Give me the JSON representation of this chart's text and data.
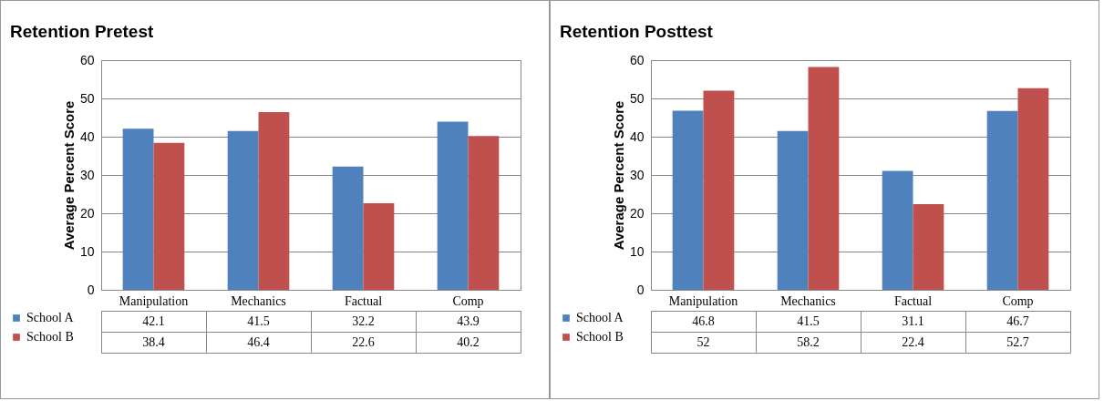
{
  "chart_data": [
    {
      "type": "bar",
      "title": "Retention Pretest",
      "ylabel": "Average Percent Score",
      "categories": [
        "Manipulation",
        "Mechanics",
        "Factual",
        "Comp"
      ],
      "series": [
        {
          "name": "School A",
          "color": "#4f81bd",
          "values": [
            42.1,
            41.5,
            32.2,
            43.9
          ]
        },
        {
          "name": "School B",
          "color": "#c0504d",
          "values": [
            38.4,
            46.4,
            22.6,
            40.2
          ]
        }
      ],
      "ylim": [
        0,
        60
      ],
      "yticks": [
        0,
        10,
        20,
        30,
        40,
        50,
        60
      ],
      "grid": "y",
      "legend": "bottom left",
      "data_labels": true
    },
    {
      "type": "bar",
      "title": "Retention Posttest",
      "ylabel": "Average Percent Score",
      "categories": [
        "Manipulation",
        "Mechanics",
        "Factual",
        "Comp"
      ],
      "series": [
        {
          "name": "School A",
          "color": "#4f81bd",
          "values": [
            46.8,
            41.5,
            31.1,
            46.7
          ]
        },
        {
          "name": "School B",
          "color": "#c0504d",
          "values": [
            52,
            58.2,
            22.4,
            52.7
          ]
        }
      ],
      "ylim": [
        0,
        60
      ],
      "yticks": [
        0,
        10,
        20,
        30,
        40,
        50,
        60
      ],
      "grid": "y",
      "legend": "bottom left",
      "data_labels": true
    }
  ]
}
